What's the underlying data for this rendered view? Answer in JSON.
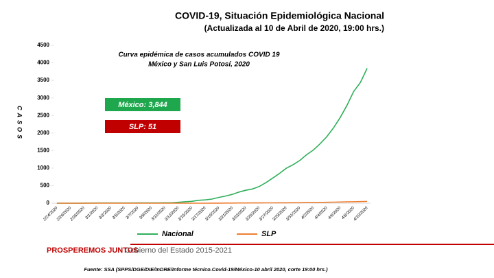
{
  "chart_data": {
    "type": "line",
    "title": "COVID-19, Situación Epidemiológica Nacional",
    "subtitle": "(Actualizada al 10 de Abril de 2020, 19:00 hrs.)",
    "chart_title": [
      "Curva epidémica de casos acumulados COVID 19",
      "México y San Luis Potosí, 2020"
    ],
    "y_label": "CASOS",
    "annotations": [
      {
        "text": "México: 3,844",
        "color": "#1fa74e"
      },
      {
        "text": "SLP: 51",
        "color": "#c00000"
      }
    ],
    "categories": [
      "2/24/2020",
      null,
      "2/26/2020",
      null,
      "2/28/2020",
      null,
      "3/1/2020",
      null,
      "3/3/2020",
      null,
      "3/5/2020",
      null,
      "3/7/2020",
      null,
      "3/9/2020",
      null,
      "3/11/2020",
      null,
      "3/13/2020",
      null,
      "3/15/2020",
      null,
      "3/17/2020",
      null,
      "3/19/2020",
      null,
      "3/21/2020",
      null,
      "3/23/2020",
      null,
      "3/25/2020",
      null,
      "3/27/2020",
      null,
      "3/29/2020",
      null,
      "3/31/2020",
      null,
      "4/2/2020",
      null,
      "4/4/2020",
      null,
      "4/6/2020",
      null,
      "4/8/2020",
      null,
      "4/10/2020"
    ],
    "series": [
      {
        "name": "Nacional",
        "color": "#2fae5a",
        "values": [
          0,
          0,
          0,
          0,
          1,
          4,
          5,
          5,
          5,
          5,
          5,
          6,
          7,
          7,
          7,
          7,
          11,
          12,
          26,
          41,
          53,
          82,
          93,
          118,
          164,
          203,
          251,
          316,
          367,
          405,
          475,
          585,
          717,
          848,
          993,
          1094,
          1215,
          1378,
          1510,
          1688,
          1890,
          2143,
          2439,
          2785,
          3181,
          3441,
          3844
        ]
      },
      {
        "name": "SLP",
        "color": "#ed7d31",
        "values": [
          0,
          0,
          0,
          0,
          0,
          0,
          0,
          0,
          0,
          0,
          0,
          0,
          0,
          0,
          0,
          0,
          0,
          0,
          0,
          0,
          0,
          0,
          0,
          1,
          1,
          3,
          3,
          5,
          5,
          7,
          7,
          9,
          9,
          11,
          11,
          14,
          14,
          17,
          17,
          21,
          25,
          29,
          34,
          38,
          42,
          45,
          51
        ]
      }
    ],
    "ylim": [
      0,
      4500
    ],
    "yticks": [
      0,
      500,
      1000,
      1500,
      2000,
      2500,
      3000,
      3500,
      4000,
      4500
    ],
    "footer": {
      "slogan": "PROSPEREMOS JUNTOS",
      "government": "Gobierno del Estado 2015-2021"
    },
    "source": "Fuente: SSA (SPPS/DGE/DIE/InDRE/Informe técnico.Covid-19/México-10 abril 2020, corte 19:00 hrs.)"
  }
}
